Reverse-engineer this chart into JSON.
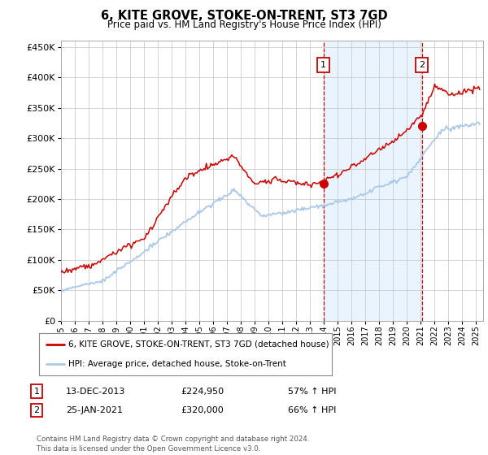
{
  "title": "6, KITE GROVE, STOKE-ON-TRENT, ST3 7GD",
  "subtitle": "Price paid vs. HM Land Registry's House Price Index (HPI)",
  "ylim": [
    0,
    460000
  ],
  "yticks": [
    0,
    50000,
    100000,
    150000,
    200000,
    250000,
    300000,
    350000,
    400000,
    450000
  ],
  "xlim_start": 1995.0,
  "xlim_end": 2025.5,
  "background_color": "#ffffff",
  "plot_bg_color": "#ffffff",
  "grid_color": "#cccccc",
  "hpi_color": "#aac8e8",
  "price_color": "#cc0000",
  "highlight_bg": "#ddeeff",
  "marker1_x": 2013.96,
  "marker1_y": 224950,
  "marker2_x": 2021.07,
  "marker2_y": 320000,
  "legend_line1": "6, KITE GROVE, STOKE-ON-TRENT, ST3 7GD (detached house)",
  "legend_line2": "HPI: Average price, detached house, Stoke-on-Trent",
  "ann1_num": "1",
  "ann1_date": "13-DEC-2013",
  "ann1_price": "£224,950",
  "ann1_hpi": "57% ↑ HPI",
  "ann2_num": "2",
  "ann2_date": "25-JAN-2021",
  "ann2_price": "£320,000",
  "ann2_hpi": "66% ↑ HPI",
  "footer": "Contains HM Land Registry data © Crown copyright and database right 2024.\nThis data is licensed under the Open Government Licence v3.0."
}
